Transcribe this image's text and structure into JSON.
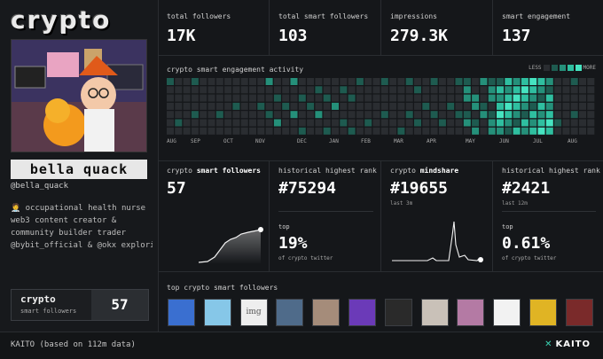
{
  "brand": "crypto",
  "profile": {
    "name": "bella quack",
    "handle": "@bella_quack",
    "bio_lines": [
      "🧑‍⚕️ occupational health nurse",
      "web3 content creator &",
      "community builder trader",
      "@bybit_official & @okx explori…"
    ],
    "smart_followers_box": {
      "title": "crypto",
      "subtitle": "smart followers",
      "value": "57"
    }
  },
  "stats": [
    {
      "label": "total followers",
      "value": "17K"
    },
    {
      "label": "total smart followers",
      "value": "103"
    },
    {
      "label": "impressions",
      "value": "279.3K"
    },
    {
      "label": "smart engagement",
      "value": "137"
    }
  ],
  "activity": {
    "title": "crypto smart engagement activity",
    "legend_less": "LESS",
    "legend_more": "MORE",
    "months": [
      "AUG",
      "SEP",
      "OCT",
      "NOV",
      "DEC",
      "JAN",
      "FEB",
      "MAR",
      "APR",
      "MAY",
      "JUN",
      "JUL",
      "AUG"
    ]
  },
  "panels": {
    "smart_followers": {
      "label_prefix": "crypto",
      "label_bold": "smart followers",
      "value": "57"
    },
    "hist_rank_1": {
      "label": "historical highest rank",
      "value": "#75294",
      "top_label": "top",
      "pct": "19%",
      "sub": "of crypto twitter"
    },
    "mindshare": {
      "label_prefix": "crypto",
      "label_bold": "mindshare",
      "value": "#19655",
      "small": "last 3m"
    },
    "hist_rank_2": {
      "label": "historical highest rank",
      "value": "#2421",
      "small": "last 12m",
      "top_label": "top",
      "pct": "0.61%",
      "sub": "of crypto twitter"
    }
  },
  "top_followers": {
    "title": "top crypto smart followers",
    "img_placeholder": "img",
    "avatars": [
      "robot-blue-avatar",
      "ape-avatar",
      "img-placeholder",
      "man-photo-avatar",
      "woman-photo-avatar",
      "purple-eye-avatar",
      "dark-hat-avatar",
      "anime-avatar",
      "pink-creature-avatar",
      "sketch-avatar",
      "yellow-pixel-avatar",
      "red-creature-avatar"
    ]
  },
  "footer": {
    "text": "KAITO (based on 112m data)",
    "logo": "KAITO"
  },
  "colors": {
    "accent": "#3ad1b1",
    "background": "#15171a",
    "empty_cell": "#2a2d31"
  }
}
